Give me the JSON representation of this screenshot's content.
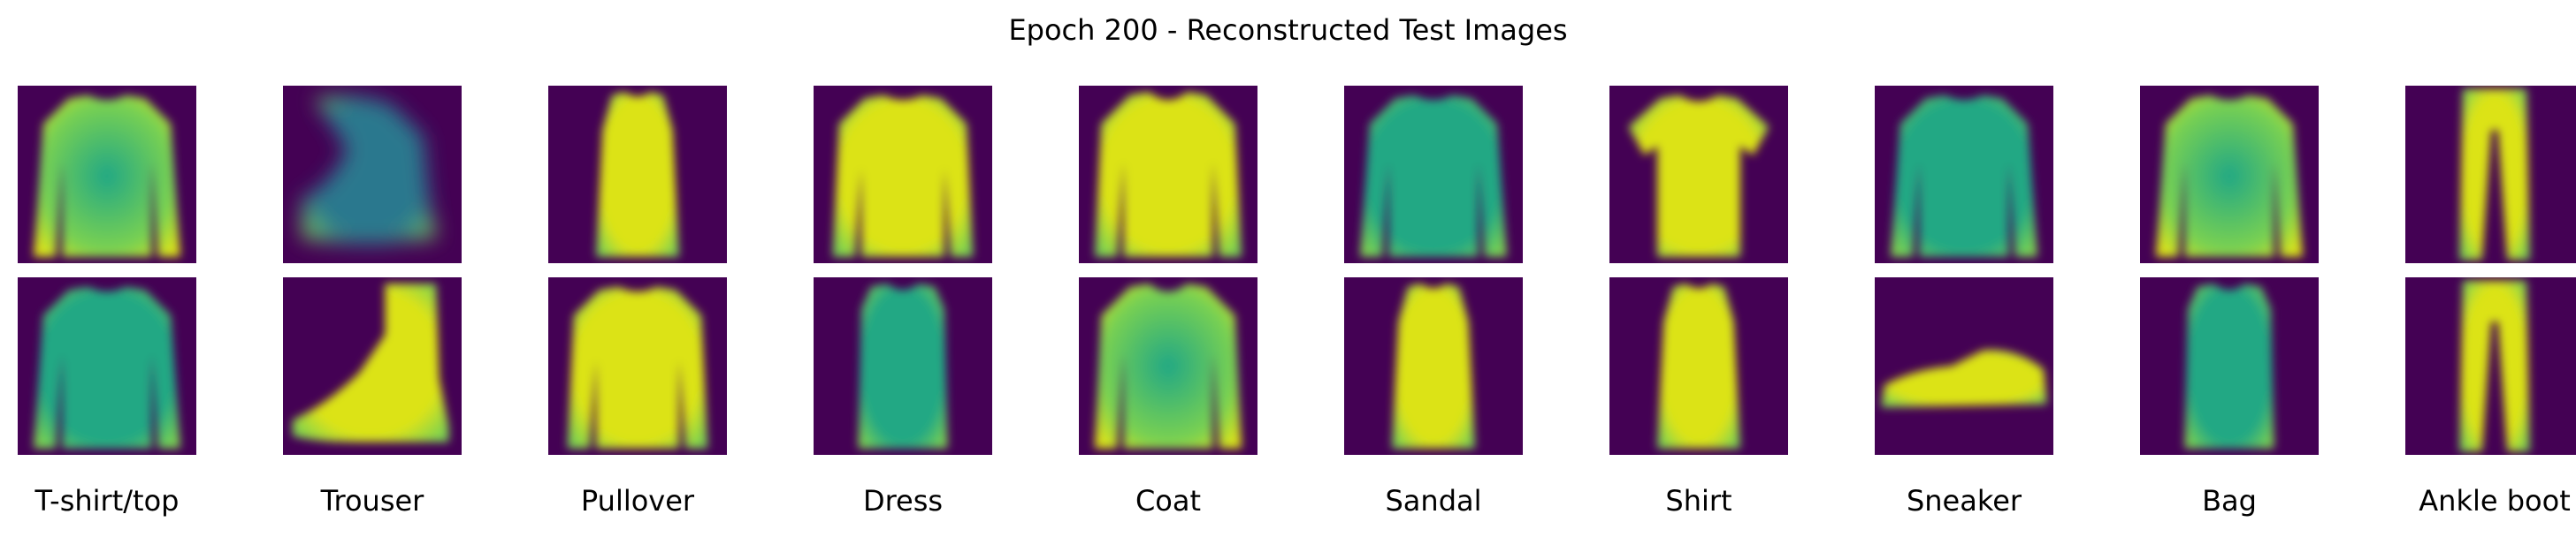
{
  "figure": {
    "title": "Epoch 200 - Reconstructed Test Images"
  },
  "colormap": {
    "name": "viridis",
    "background": "#440154",
    "dark_teal": "#2A788E",
    "teal": "#22A884",
    "green": "#7AD151",
    "yellow": "#DCE319"
  },
  "images": {
    "columns": [
      {
        "label": "T-shirt/top",
        "top": {
          "depicts": "long-sleeve-top",
          "tone": "green"
        },
        "bottom": {
          "depicts": "long-sleeve-top",
          "tone": "teal"
        }
      },
      {
        "label": "Trouser",
        "top": {
          "depicts": "blurry-boot",
          "tone": "dark_teal"
        },
        "bottom": {
          "depicts": "ankle-boot",
          "tone": "yellow"
        }
      },
      {
        "label": "Pullover",
        "top": {
          "depicts": "dress",
          "tone": "yellow"
        },
        "bottom": {
          "depicts": "pullover",
          "tone": "yellow"
        }
      },
      {
        "label": "Dress",
        "top": {
          "depicts": "pullover",
          "tone": "yellow"
        },
        "bottom": {
          "depicts": "sleeveless-top",
          "tone": "teal"
        }
      },
      {
        "label": "Coat",
        "top": {
          "depicts": "coat",
          "tone": "yellow"
        },
        "bottom": {
          "depicts": "coat",
          "tone": "green"
        }
      },
      {
        "label": "Sandal",
        "top": {
          "depicts": "long-sleeve-top",
          "tone": "teal"
        },
        "bottom": {
          "depicts": "dress",
          "tone": "yellow"
        }
      },
      {
        "label": "Shirt",
        "top": {
          "depicts": "t-shirt",
          "tone": "yellow"
        },
        "bottom": {
          "depicts": "dress",
          "tone": "yellow"
        }
      },
      {
        "label": "Sneaker",
        "top": {
          "depicts": "long-sleeve-top",
          "tone": "teal"
        },
        "bottom": {
          "depicts": "sneaker",
          "tone": "yellow"
        }
      },
      {
        "label": "Bag",
        "top": {
          "depicts": "long-sleeve-top",
          "tone": "green"
        },
        "bottom": {
          "depicts": "sleeveless-top",
          "tone": "teal"
        }
      },
      {
        "label": "Ankle boot",
        "top": {
          "depicts": "trouser",
          "tone": "yellow"
        },
        "bottom": {
          "depicts": "trouser",
          "tone": "yellow"
        }
      }
    ]
  }
}
